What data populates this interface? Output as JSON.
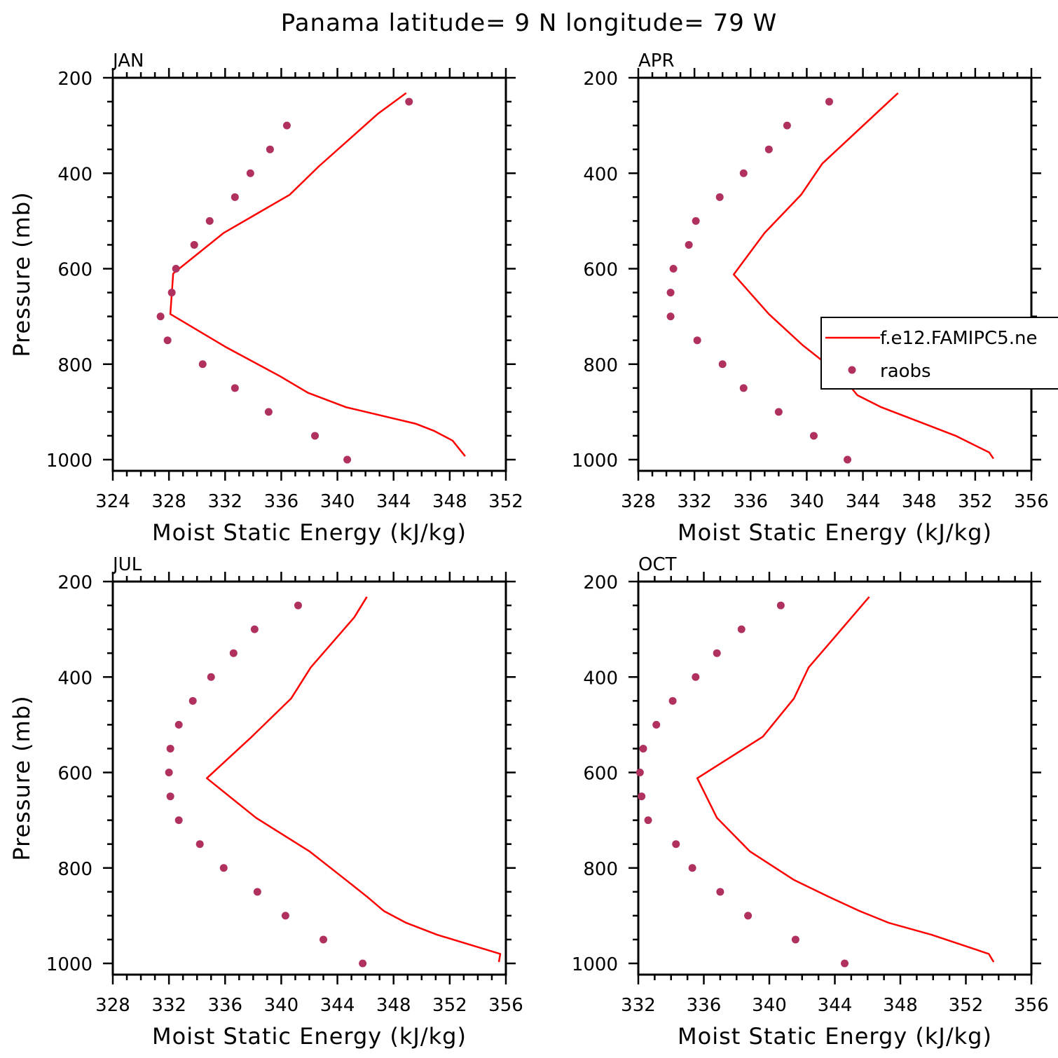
{
  "figure": {
    "title": "Panama  latitude= 9 N longitude= 79 W"
  },
  "legend": {
    "model_label": "f.e12.FAMIPC5.ne",
    "obs_label": "raobs",
    "model_color": "#ff0000",
    "obs_color": "#b03060"
  },
  "chart_data": [
    {
      "type": "line",
      "panel": "JAN",
      "title": "JAN",
      "xlabel": "Moist Static Energy (kJ/kg)",
      "ylabel": "Pressure (mb)",
      "xlim": [
        324,
        352
      ],
      "ylim": [
        1000,
        200
      ],
      "xticks": [
        324,
        328,
        332,
        336,
        340,
        344,
        348,
        352
      ],
      "yticks": [
        200,
        400,
        600,
        800,
        1000
      ],
      "model": {
        "name": "f.e12.FAMIPC5.ne",
        "pressure": [
          232,
          275,
          385,
          445,
          525,
          610,
          695,
          765,
          825,
          860,
          890,
          925,
          940,
          960,
          993
        ],
        "mse": [
          344.9,
          342.9,
          338.7,
          336.6,
          331.9,
          328.3,
          328.1,
          332.1,
          335.9,
          337.9,
          340.6,
          345.6,
          346.9,
          348.2,
          349.1
        ]
      },
      "raobs": {
        "name": "raobs",
        "pressure": [
          250,
          300,
          350,
          400,
          450,
          500,
          550,
          600,
          650,
          700,
          750,
          800,
          850,
          900,
          950,
          1000
        ],
        "mse": [
          345.1,
          336.4,
          335.2,
          333.8,
          332.7,
          330.9,
          329.8,
          328.5,
          328.2,
          327.4,
          327.9,
          330.4,
          332.7,
          335.1,
          338.4,
          340.7
        ]
      }
    },
    {
      "type": "line",
      "panel": "APR",
      "title": "APR",
      "xlabel": "Moist Static Energy (kJ/kg)",
      "ylabel": "",
      "xlim": [
        328,
        356
      ],
      "ylim": [
        1000,
        200
      ],
      "xticks": [
        328,
        332,
        336,
        340,
        344,
        348,
        352,
        356
      ],
      "yticks": [
        200,
        400,
        600,
        800,
        1000
      ],
      "model": {
        "name": "f.e12.FAMIPC5.ne",
        "pressure": [
          232,
          380,
          445,
          525,
          612,
          695,
          760,
          825,
          865,
          890,
          925,
          950,
          985,
          998
        ],
        "mse": [
          346.5,
          341.1,
          339.6,
          337.0,
          334.8,
          337.3,
          339.7,
          342.5,
          343.6,
          345.3,
          348.4,
          350.6,
          353.0,
          353.3
        ]
      },
      "raobs": {
        "name": "raobs",
        "pressure": [
          250,
          300,
          350,
          400,
          450,
          500,
          550,
          600,
          650,
          700,
          750,
          800,
          850,
          900,
          950,
          1000
        ],
        "mse": [
          341.6,
          338.6,
          337.3,
          335.5,
          333.8,
          332.1,
          331.6,
          330.5,
          330.3,
          330.3,
          332.2,
          334.0,
          335.5,
          338.0,
          340.5,
          342.9
        ]
      }
    },
    {
      "type": "line",
      "panel": "JUL",
      "title": "JUL",
      "xlabel": "Moist Static Energy (kJ/kg)",
      "ylabel": "Pressure (mb)",
      "xlim": [
        328,
        356
      ],
      "ylim": [
        1000,
        200
      ],
      "xticks": [
        328,
        332,
        336,
        340,
        344,
        348,
        352,
        356
      ],
      "yticks": [
        200,
        400,
        600,
        800,
        1000
      ],
      "model": {
        "name": "f.e12.FAMIPC5.ne",
        "pressure": [
          232,
          275,
          380,
          445,
          525,
          612,
          695,
          765,
          825,
          860,
          890,
          915,
          940,
          980,
          997
        ],
        "mse": [
          346.1,
          345.2,
          342.1,
          340.7,
          337.9,
          334.7,
          338.2,
          342.0,
          344.6,
          346.1,
          347.3,
          348.9,
          351.1,
          355.6,
          355.5
        ]
      },
      "raobs": {
        "name": "raobs",
        "pressure": [
          250,
          300,
          350,
          400,
          450,
          500,
          550,
          600,
          650,
          700,
          750,
          800,
          850,
          900,
          950,
          1000
        ],
        "mse": [
          341.2,
          338.1,
          336.6,
          335.0,
          333.7,
          332.7,
          332.1,
          332.0,
          332.1,
          332.7,
          334.2,
          335.9,
          338.3,
          340.3,
          343.0,
          345.8
        ]
      }
    },
    {
      "type": "line",
      "panel": "OCT",
      "title": "OCT",
      "xlabel": "Moist Static Energy (kJ/kg)",
      "ylabel": "",
      "xlim": [
        332,
        356
      ],
      "ylim": [
        1000,
        200
      ],
      "xticks": [
        332,
        336,
        340,
        344,
        348,
        352,
        356
      ],
      "yticks": [
        200,
        400,
        600,
        800,
        1000
      ],
      "model": {
        "name": "f.e12.FAMIPC5.ne",
        "pressure": [
          232,
          320,
          380,
          445,
          525,
          612,
          695,
          765,
          825,
          860,
          890,
          915,
          940,
          980,
          997
        ],
        "mse": [
          346.1,
          343.9,
          342.4,
          341.5,
          339.6,
          335.6,
          336.8,
          338.8,
          341.5,
          343.6,
          345.5,
          347.3,
          349.9,
          353.4,
          353.7
        ]
      },
      "raobs": {
        "name": "raobs",
        "pressure": [
          250,
          300,
          350,
          400,
          450,
          500,
          550,
          600,
          650,
          700,
          750,
          800,
          850,
          900,
          950,
          1000
        ],
        "mse": [
          340.7,
          338.3,
          336.8,
          335.5,
          334.1,
          333.1,
          332.3,
          332.1,
          332.2,
          332.6,
          334.3,
          335.3,
          337.0,
          338.7,
          341.6,
          344.6
        ]
      }
    }
  ]
}
